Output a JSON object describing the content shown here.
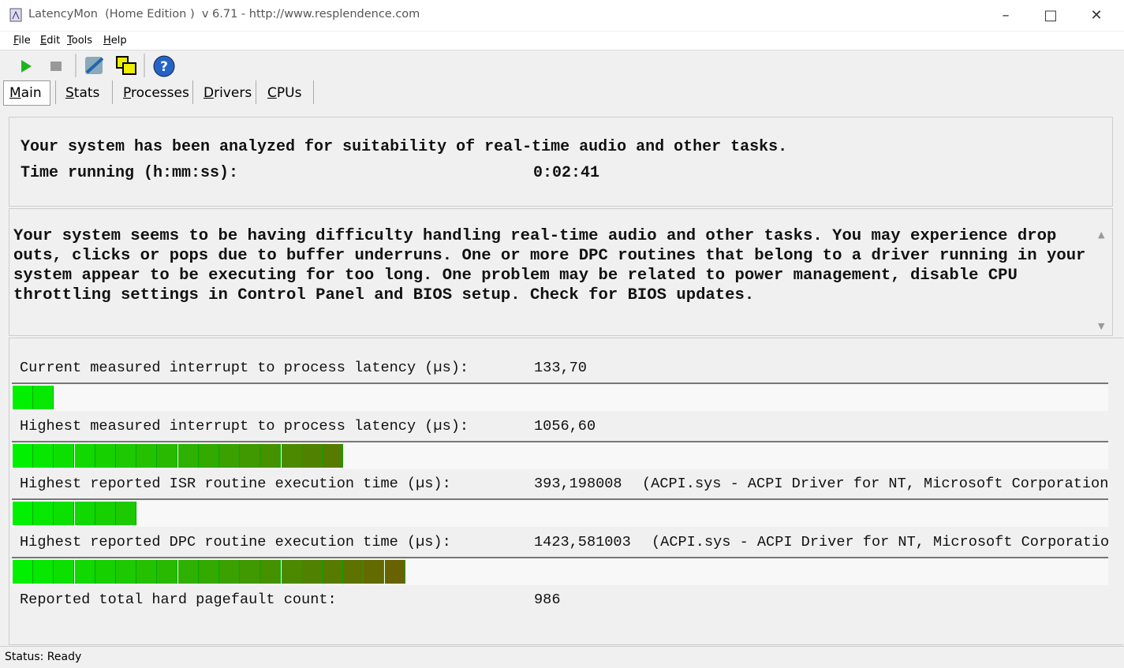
{
  "window": {
    "title": "LatencyMon  (Home Edition )  v 6.71 - http://www.resplendence.com"
  },
  "menu": [
    "File",
    "Edit",
    "Tools",
    "Help"
  ],
  "tabs": [
    "Main",
    "Stats",
    "Processes",
    "Drivers",
    "CPUs"
  ],
  "summary": {
    "line": "Your system has been analyzed for suitability of real-time audio and other tasks.",
    "time_label": "Time running (h:mm:ss):",
    "time_value": "0:02:41"
  },
  "message": "Your system seems to be having difficulty handling real-time audio and other tasks. You may experience drop outs, clicks or pops due to buffer underruns. One or more DPC routines that belong to a driver running in your system appear to be executing for too long. One problem may be related to power management, disable CPU throttling settings in Control Panel and BIOS setup. Check for BIOS updates.",
  "metrics": [
    {
      "label": "Current measured interrupt to process latency (µs):",
      "value": "133,70"
    },
    {
      "label": "Highest measured interrupt to process latency (µs):",
      "value": "1056,60"
    },
    {
      "label": "Highest reported ISR routine execution time (µs):",
      "value": "393,198008",
      "note": "(ACPI.sys - ACPI Driver for NT, Microsoft Corporation"
    },
    {
      "label": "Highest reported DPC routine execution time (µs):",
      "value": "1423,581003",
      "note": "(ACPI.sys - ACPI Driver for NT, Microsoft Corporatio"
    }
  ],
  "pagefault": {
    "label": "Reported total hard pagefault count:",
    "value": "986"
  },
  "status": "Status: Ready"
}
